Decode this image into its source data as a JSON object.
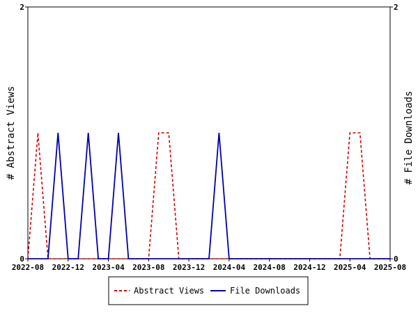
{
  "chart_data": {
    "type": "line",
    "x_ticks": [
      "2022-08",
      "2022-12",
      "2023-04",
      "2023-08",
      "2023-12",
      "2024-04",
      "2024-08",
      "2024-12",
      "2025-04",
      "2025-08"
    ],
    "x": [
      "2022-08",
      "2022-09",
      "2022-10",
      "2022-11",
      "2022-12",
      "2023-01",
      "2023-02",
      "2023-03",
      "2023-04",
      "2023-05",
      "2023-06",
      "2023-07",
      "2023-08",
      "2023-09",
      "2023-10",
      "2023-11",
      "2023-12",
      "2024-01",
      "2024-02",
      "2024-03",
      "2024-04",
      "2024-05",
      "2024-06",
      "2024-07",
      "2024-08",
      "2024-09",
      "2024-10",
      "2024-11",
      "2024-12",
      "2025-01",
      "2025-02",
      "2025-03",
      "2025-04",
      "2025-05",
      "2025-06",
      "2025-07",
      "2025-08"
    ],
    "series": [
      {
        "name": "Abstract Views",
        "axis": "left",
        "color": "#cc0000",
        "dash": "dashed",
        "values": [
          0,
          1,
          0,
          0,
          0,
          0,
          0,
          0,
          0,
          0,
          0,
          0,
          0,
          1,
          1,
          0,
          0,
          0,
          0,
          0,
          0,
          0,
          0,
          0,
          0,
          0,
          0,
          0,
          0,
          0,
          0,
          0,
          1,
          1,
          0,
          0,
          0
        ]
      },
      {
        "name": "File Downloads",
        "axis": "right",
        "color": "#0000aa",
        "dash": "solid",
        "values": [
          0,
          0,
          0,
          1,
          0,
          0,
          1,
          0,
          0,
          1,
          0,
          0,
          0,
          0,
          0,
          0,
          0,
          0,
          0,
          1,
          0,
          0,
          0,
          0,
          0,
          0,
          0,
          0,
          0,
          0,
          0,
          0,
          0,
          0,
          0,
          0,
          0
        ]
      }
    ],
    "y_left": {
      "label": "# Abstract Views",
      "ylim": [
        0,
        2
      ],
      "ticks": [
        "0",
        "2"
      ]
    },
    "y_right": {
      "label": "# File Downloads",
      "ylim": [
        0,
        2
      ],
      "ticks": [
        "0",
        "2"
      ]
    },
    "grid": false,
    "legend_position": "bottom"
  }
}
